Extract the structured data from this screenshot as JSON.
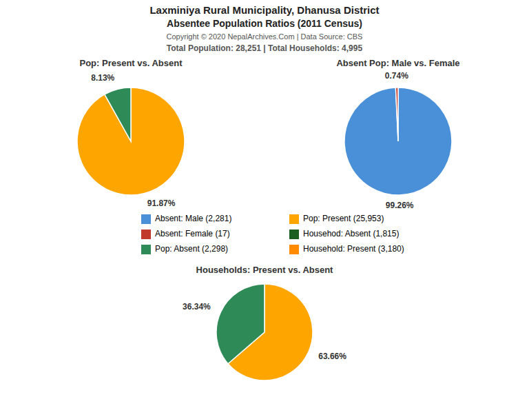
{
  "title": "Laxminiya Rural Municipality, Dhanusa District",
  "subtitle": "Absentee Population Ratios (2011 Census)",
  "annotations": [
    "Copyright © 2020 NepalArchives.Com | Data Source: CBS",
    "Total Population: 28,251 | Total Households: 4,995"
  ],
  "legend_items": [
    {
      "label": "Absent: Male (2,281)",
      "color": "#4A90D9"
    },
    {
      "label": "Absent: Female (17)",
      "color": "#C0392B"
    },
    {
      "label": "Pop: Absent (2,298)",
      "color": "#2E8B57"
    },
    {
      "label": "Pop: Present (25,953)",
      "color": "#FFA500"
    },
    {
      "label": "Househod: Absent (1,815)",
      "color": "#1B5E20"
    },
    {
      "label": "Household: Present (3,180)",
      "color": "#FF8C00"
    }
  ],
  "chart_data": [
    {
      "type": "pie",
      "title": "Pop: Present vs. Absent",
      "values": [
        91.87,
        8.13
      ],
      "value_labels": [
        "91.87%",
        "8.13%"
      ],
      "colors": [
        "#FFA500",
        "#2E8B57"
      ]
    },
    {
      "type": "pie",
      "title": "Absent Pop: Male vs. Female",
      "values": [
        99.26,
        0.74
      ],
      "value_labels": [
        "99.26%",
        "0.74%"
      ],
      "colors": [
        "#4A90D9",
        "#C0392B"
      ]
    },
    {
      "type": "pie",
      "title": "Households: Present vs. Absent",
      "values": [
        63.66,
        36.34
      ],
      "value_labels": [
        "63.66%",
        "36.34%"
      ],
      "colors": [
        "#FFA500",
        "#2E8B57"
      ]
    }
  ]
}
